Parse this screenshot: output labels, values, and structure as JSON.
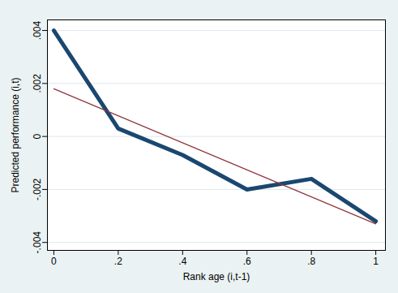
{
  "chart_data": {
    "type": "line",
    "x_label": "Rank age (i,t-1)",
    "y_label": "Predicted performance (i,t)",
    "series": [
      {
        "color": "#1a476f",
        "x": [
          0,
          0.2,
          0.4,
          0.6,
          0.8,
          1
        ],
        "values": [
          0.004,
          0.0003,
          -0.0007,
          -0.002,
          -0.0016,
          -0.0032
        ]
      },
      {
        "color": "#90353b",
        "x": [
          0,
          1
        ],
        "values": [
          0.0018,
          -0.0033
        ]
      }
    ],
    "xlim": [
      -0.02,
      1.03
    ],
    "ylim": [
      -0.0043,
      0.0044
    ],
    "xticks": [
      0,
      {
        "value": 0.2,
        "label": ".2"
      },
      {
        "value": 0.4,
        "label": ".4"
      },
      {
        "value": 0.6,
        "label": ".6"
      },
      {
        "value": 0.8,
        "label": ".8"
      },
      1
    ],
    "yticks": [
      {
        "value": -0.004,
        "label": "-.004"
      },
      {
        "value": -0.002,
        "label": "-.002"
      },
      0,
      {
        "value": 0.002,
        "label": ".002"
      },
      {
        "value": 0.004,
        "label": ".004"
      }
    ],
    "grid": true
  }
}
